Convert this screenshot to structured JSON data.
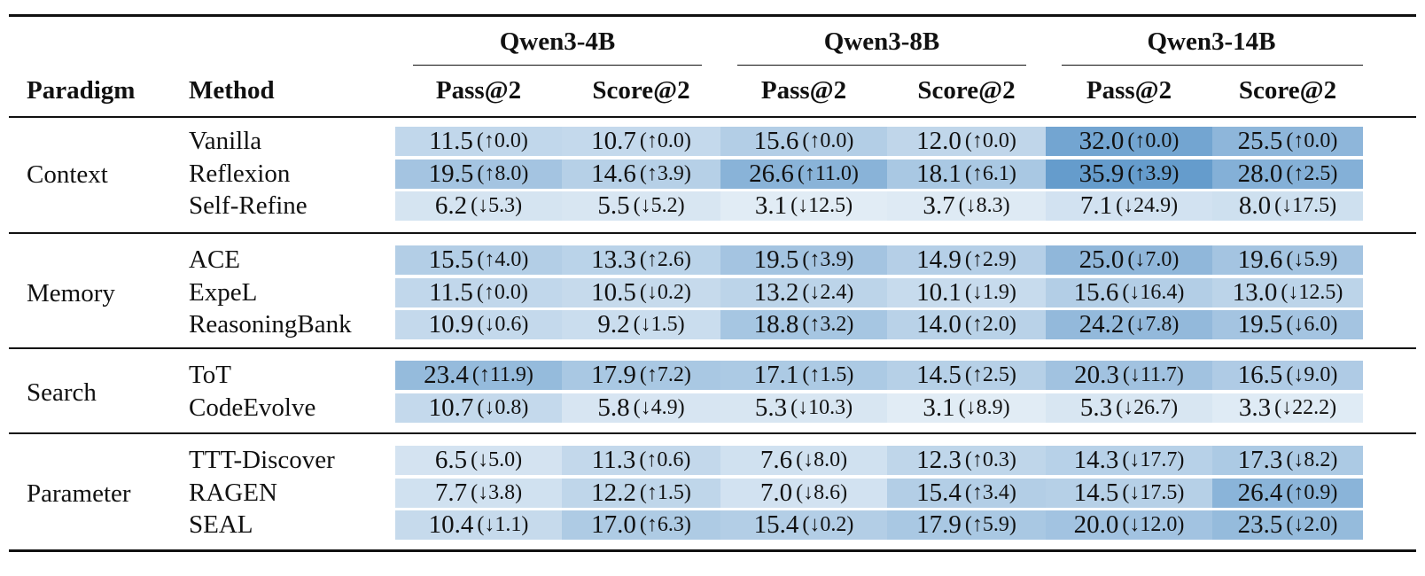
{
  "headers": {
    "paradigm": "Paradigm",
    "method": "Method",
    "models": [
      "Qwen3-4B",
      "Qwen3-8B",
      "Qwen3-14B"
    ],
    "metrics": [
      "Pass@2",
      "Score@2",
      "Pass@2",
      "Score@2",
      "Pass@2",
      "Score@2"
    ]
  },
  "groups": [
    {
      "paradigm": "Context",
      "rows": [
        {
          "method": "Vanilla",
          "cells": [
            {
              "v": "11.5",
              "d": "(↑0.0)",
              "shade": 0.3
            },
            {
              "v": "10.7",
              "d": "(↑0.0)",
              "shade": 0.28
            },
            {
              "v": "15.6",
              "d": "(↑0.0)",
              "shade": 0.4
            },
            {
              "v": "12.0",
              "d": "(↑0.0)",
              "shade": 0.31
            },
            {
              "v": "32.0",
              "d": "(↑0.0)",
              "shade": 0.85
            },
            {
              "v": "25.5",
              "d": "(↑0.0)",
              "shade": 0.66
            }
          ]
        },
        {
          "method": "Reflexion",
          "cells": [
            {
              "v": "19.5",
              "d": "(↑8.0)",
              "shade": 0.51
            },
            {
              "v": "14.6",
              "d": "(↑3.9)",
              "shade": 0.38
            },
            {
              "v": "26.6",
              "d": "(↑11.0)",
              "shade": 0.7
            },
            {
              "v": "18.1",
              "d": "(↑6.1)",
              "shade": 0.47
            },
            {
              "v": "35.9",
              "d": "(↑3.9)",
              "shade": 0.95
            },
            {
              "v": "28.0",
              "d": "(↑2.5)",
              "shade": 0.73
            }
          ]
        },
        {
          "method": "Self-Refine",
          "cells": [
            {
              "v": "6.2",
              "d": "(↓5.3)",
              "shade": 0.16
            },
            {
              "v": "5.5",
              "d": "(↓5.2)",
              "shade": 0.14
            },
            {
              "v": "3.1",
              "d": "(↓12.5)",
              "shade": 0.08
            },
            {
              "v": "3.7",
              "d": "(↓8.3)",
              "shade": 0.1
            },
            {
              "v": "7.1",
              "d": "(↓24.9)",
              "shade": 0.18
            },
            {
              "v": "8.0",
              "d": "(↓17.5)",
              "shade": 0.21
            }
          ]
        }
      ]
    },
    {
      "paradigm": "Memory",
      "rows": [
        {
          "method": "ACE",
          "cells": [
            {
              "v": "15.5",
              "d": "(↑4.0)",
              "shade": 0.4
            },
            {
              "v": "13.3",
              "d": "(↑2.6)",
              "shade": 0.35
            },
            {
              "v": "19.5",
              "d": "(↑3.9)",
              "shade": 0.51
            },
            {
              "v": "14.9",
              "d": "(↑2.9)",
              "shade": 0.39
            },
            {
              "v": "25.0",
              "d": "(↓7.0)",
              "shade": 0.65
            },
            {
              "v": "19.6",
              "d": "(↓5.9)",
              "shade": 0.51
            }
          ]
        },
        {
          "method": "ExpeL",
          "cells": [
            {
              "v": "11.5",
              "d": "(↑0.0)",
              "shade": 0.3
            },
            {
              "v": "10.5",
              "d": "(↓0.2)",
              "shade": 0.27
            },
            {
              "v": "13.2",
              "d": "(↓2.4)",
              "shade": 0.34
            },
            {
              "v": "10.1",
              "d": "(↓1.9)",
              "shade": 0.26
            },
            {
              "v": "15.6",
              "d": "(↓16.4)",
              "shade": 0.4
            },
            {
              "v": "13.0",
              "d": "(↓12.5)",
              "shade": 0.34
            }
          ]
        },
        {
          "method": "ReasoningBank",
          "cells": [
            {
              "v": "10.9",
              "d": "(↓0.6)",
              "shade": 0.28
            },
            {
              "v": "9.2",
              "d": "(↓1.5)",
              "shade": 0.24
            },
            {
              "v": "18.8",
              "d": "(↑3.2)",
              "shade": 0.49
            },
            {
              "v": "14.0",
              "d": "(↑2.0)",
              "shade": 0.36
            },
            {
              "v": "24.2",
              "d": "(↓7.8)",
              "shade": 0.63
            },
            {
              "v": "19.5",
              "d": "(↓6.0)",
              "shade": 0.51
            }
          ]
        }
      ]
    },
    {
      "paradigm": "Search",
      "rows": [
        {
          "method": "ToT",
          "cells": [
            {
              "v": "23.4",
              "d": "(↑11.9)",
              "shade": 0.61
            },
            {
              "v": "17.9",
              "d": "(↑7.2)",
              "shade": 0.47
            },
            {
              "v": "17.1",
              "d": "(↑1.5)",
              "shade": 0.45
            },
            {
              "v": "14.5",
              "d": "(↑2.5)",
              "shade": 0.38
            },
            {
              "v": "20.3",
              "d": "(↓11.7)",
              "shade": 0.53
            },
            {
              "v": "16.5",
              "d": "(↓9.0)",
              "shade": 0.43
            }
          ]
        },
        {
          "method": "CodeEvolve",
          "cells": [
            {
              "v": "10.7",
              "d": "(↓0.8)",
              "shade": 0.28
            },
            {
              "v": "5.8",
              "d": "(↓4.9)",
              "shade": 0.15
            },
            {
              "v": "5.3",
              "d": "(↓10.3)",
              "shade": 0.14
            },
            {
              "v": "3.1",
              "d": "(↓8.9)",
              "shade": 0.08
            },
            {
              "v": "5.3",
              "d": "(↓26.7)",
              "shade": 0.14
            },
            {
              "v": "3.3",
              "d": "(↓22.2)",
              "shade": 0.09
            }
          ]
        }
      ]
    },
    {
      "paradigm": "Parameter",
      "rows": [
        {
          "method": "TTT-Discover",
          "cells": [
            {
              "v": "6.5",
              "d": "(↓5.0)",
              "shade": 0.17
            },
            {
              "v": "11.3",
              "d": "(↑0.6)",
              "shade": 0.29
            },
            {
              "v": "7.6",
              "d": "(↓8.0)",
              "shade": 0.2
            },
            {
              "v": "12.3",
              "d": "(↑0.3)",
              "shade": 0.32
            },
            {
              "v": "14.3",
              "d": "(↓17.7)",
              "shade": 0.37
            },
            {
              "v": "17.3",
              "d": "(↓8.2)",
              "shade": 0.45
            }
          ]
        },
        {
          "method": "RAGEN",
          "cells": [
            {
              "v": "7.7",
              "d": "(↓3.8)",
              "shade": 0.2
            },
            {
              "v": "12.2",
              "d": "(↑1.5)",
              "shade": 0.32
            },
            {
              "v": "7.0",
              "d": "(↓8.6)",
              "shade": 0.18
            },
            {
              "v": "15.4",
              "d": "(↑3.4)",
              "shade": 0.4
            },
            {
              "v": "14.5",
              "d": "(↓17.5)",
              "shade": 0.38
            },
            {
              "v": "26.4",
              "d": "(↑0.9)",
              "shade": 0.69
            }
          ]
        },
        {
          "method": "SEAL",
          "cells": [
            {
              "v": "10.4",
              "d": "(↓1.1)",
              "shade": 0.27
            },
            {
              "v": "17.0",
              "d": "(↑6.3)",
              "shade": 0.44
            },
            {
              "v": "15.4",
              "d": "(↓0.2)",
              "shade": 0.4
            },
            {
              "v": "17.9",
              "d": "(↑5.9)",
              "shade": 0.47
            },
            {
              "v": "20.0",
              "d": "(↓12.0)",
              "shade": 0.52
            },
            {
              "v": "23.5",
              "d": "(↓2.0)",
              "shade": 0.61
            }
          ]
        }
      ]
    }
  ]
}
